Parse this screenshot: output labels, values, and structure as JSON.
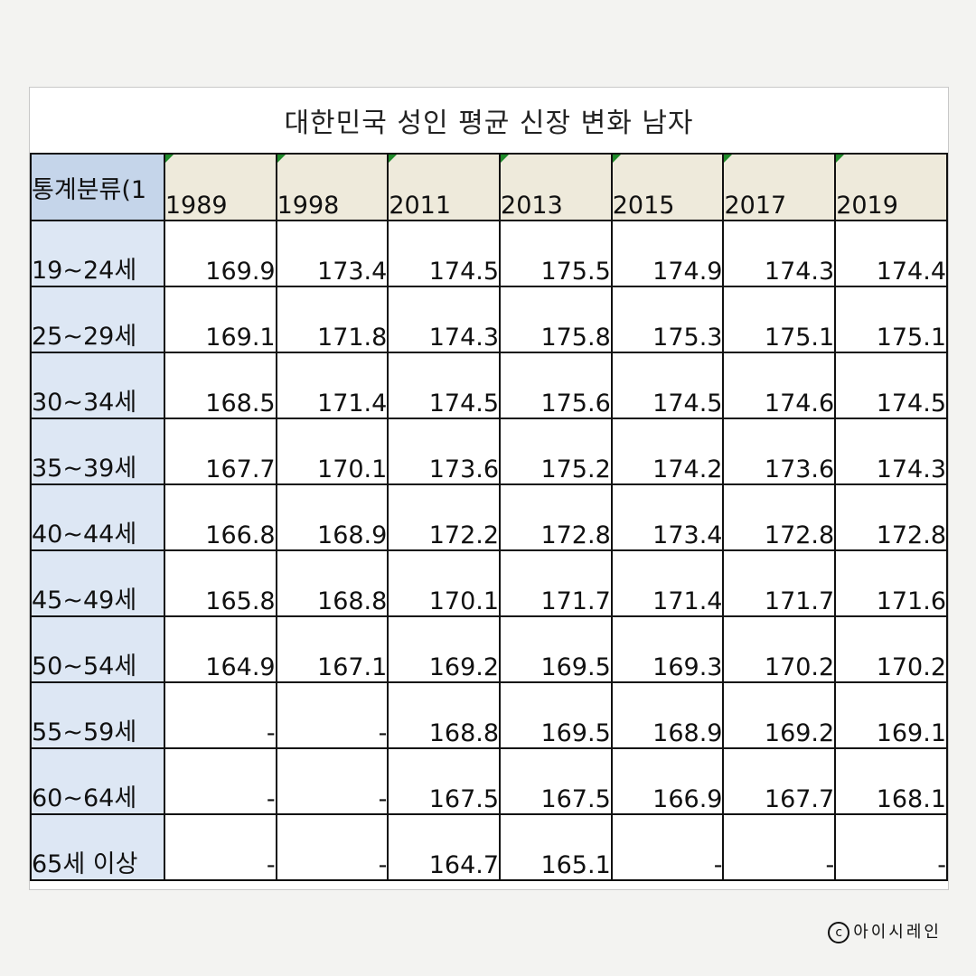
{
  "title": "대한민국 성인 평균 신장 변화 남자",
  "corner_label": "통계분류(1",
  "years": [
    "1989",
    "1998",
    "2011",
    "2013",
    "2015",
    "2017",
    "2019"
  ],
  "rows": [
    {
      "label": "19~24세",
      "values": [
        "169.9",
        "173.4",
        "174.5",
        "175.5",
        "174.9",
        "174.3",
        "174.4"
      ]
    },
    {
      "label": "25~29세",
      "values": [
        "169.1",
        "171.8",
        "174.3",
        "175.8",
        "175.3",
        "175.1",
        "175.1"
      ]
    },
    {
      "label": "30~34세",
      "values": [
        "168.5",
        "171.4",
        "174.5",
        "175.6",
        "174.5",
        "174.6",
        "174.5"
      ]
    },
    {
      "label": "35~39세",
      "values": [
        "167.7",
        "170.1",
        "173.6",
        "175.2",
        "174.2",
        "173.6",
        "174.3"
      ]
    },
    {
      "label": "40~44세",
      "values": [
        "166.8",
        "168.9",
        "172.2",
        "172.8",
        "173.4",
        "172.8",
        "172.8"
      ]
    },
    {
      "label": "45~49세",
      "values": [
        "165.8",
        "168.8",
        "170.1",
        "171.7",
        "171.4",
        "171.7",
        "171.6"
      ]
    },
    {
      "label": "50~54세",
      "values": [
        "164.9",
        "167.1",
        "169.2",
        "169.5",
        "169.3",
        "170.2",
        "170.2"
      ]
    },
    {
      "label": "55~59세",
      "values": [
        "-",
        "-",
        "168.8",
        "169.5",
        "168.9",
        "169.2",
        "169.1"
      ]
    },
    {
      "label": "60~64세",
      "values": [
        "-",
        "-",
        "167.5",
        "167.5",
        "166.9",
        "167.7",
        "168.1"
      ]
    },
    {
      "label": "65세 이상",
      "values": [
        "-",
        "-",
        "164.7",
        "165.1",
        "-",
        "-",
        "-"
      ]
    }
  ],
  "copyright": {
    "symbol": "c",
    "text": "아이시레인"
  },
  "colors": {
    "header_row_bg": "#eeeadb",
    "row_label_bg": "#dde7f4",
    "corner_bg": "#c5d5ea",
    "indicator": "#1f8a2a"
  }
}
